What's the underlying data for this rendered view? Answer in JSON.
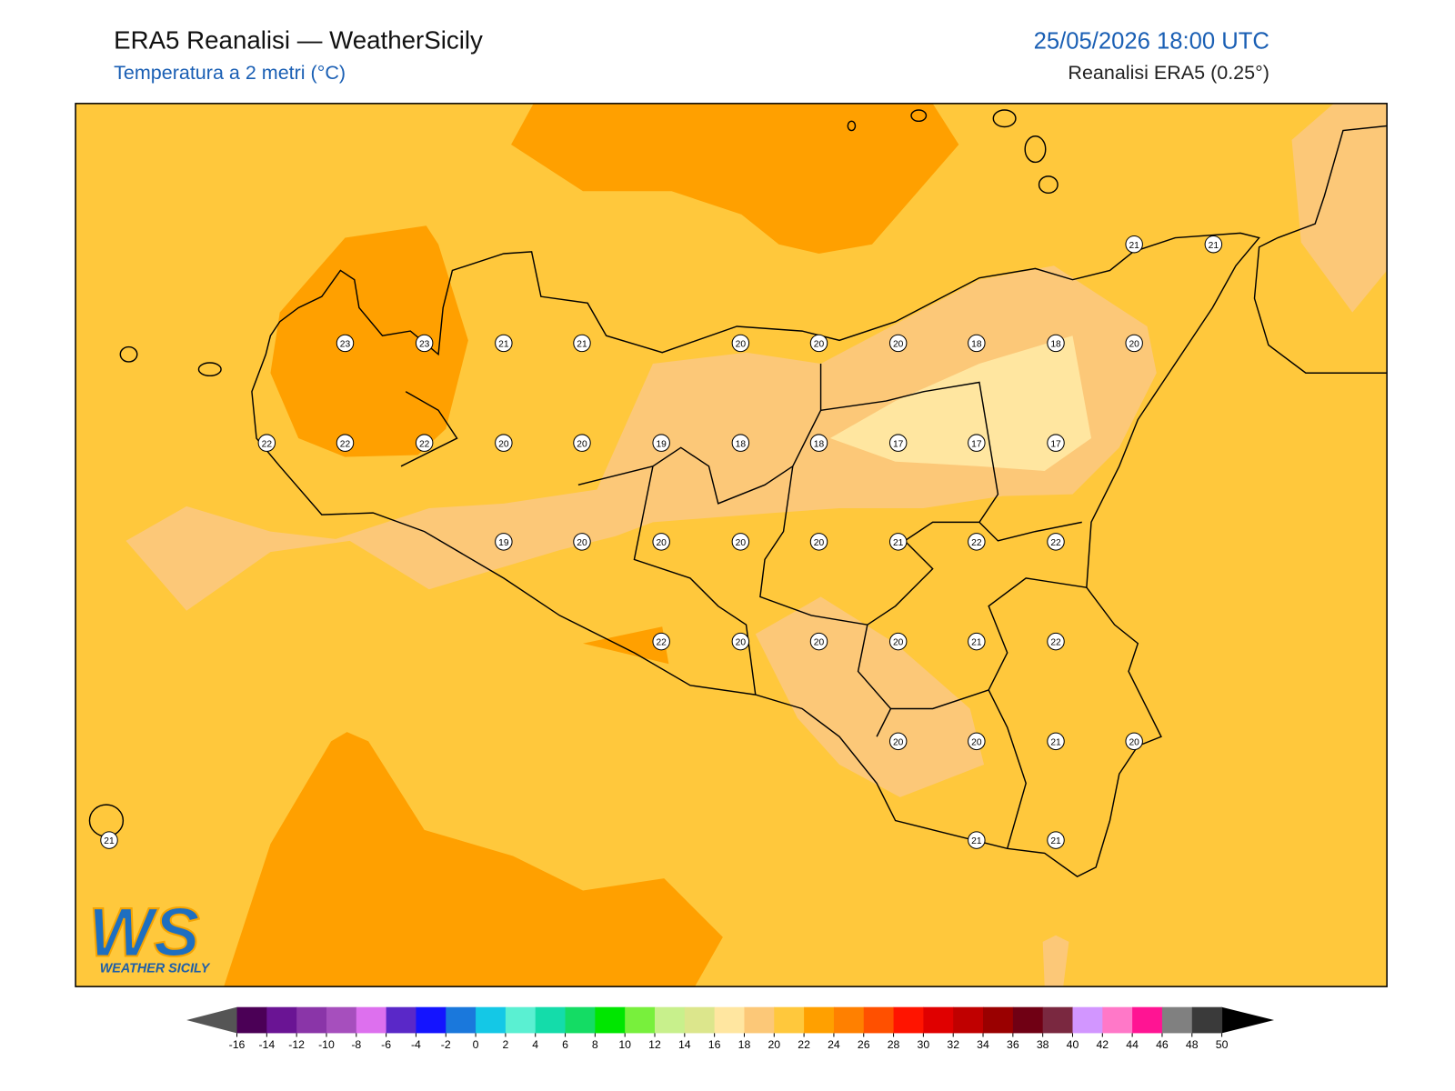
{
  "header": {
    "title": "ERA5 Reanalisi — WeatherSicily",
    "subtitle": "Temperatura a 2 metri (°C)",
    "datetime": "25/05/2026 18:00 UTC",
    "source": "Reanalisi ERA5 (0.25°)"
  },
  "stations": {
    "values": [
      21,
      21,
      23,
      23,
      21,
      21,
      20,
      20,
      20,
      18,
      18,
      20,
      22,
      22,
      22,
      20,
      20,
      19,
      18,
      18,
      17,
      17,
      17,
      19,
      20,
      20,
      20,
      20,
      21,
      22,
      22,
      22,
      20,
      20,
      20,
      21,
      22,
      20,
      20,
      21,
      20,
      21,
      21,
      21
    ]
  },
  "colorbar": {
    "ticks": [
      -16,
      -14,
      -12,
      -10,
      -8,
      -6,
      -4,
      -2,
      0,
      2,
      4,
      6,
      8,
      10,
      12,
      14,
      16,
      18,
      20,
      22,
      24,
      26,
      28,
      30,
      32,
      34,
      36,
      38,
      40,
      42,
      44,
      46,
      48,
      50
    ],
    "colors": [
      "#4b0056",
      "#6a1494",
      "#8a35a8",
      "#a64fbd",
      "#dd70ee",
      "#5a28c8",
      "#1414ff",
      "#1a78dc",
      "#14c8e6",
      "#5af0d2",
      "#14dcaa",
      "#14dc64",
      "#00e600",
      "#78f03c",
      "#c8f08c",
      "#dce68c",
      "#ffe6a0",
      "#fcc878",
      "#ffc83c",
      "#ffa000",
      "#ff8000",
      "#ff5000",
      "#ff1400",
      "#e00000",
      "#c00000",
      "#9a0000",
      "#700014",
      "#7a2840",
      "#d296ff",
      "#ff78c8",
      "#ff1493",
      "#808080",
      "#3a3a3a"
    ],
    "under_color": "#555555",
    "over_color": "#000000"
  },
  "logo": {
    "mark": "WS",
    "text": "WEATHER SICILY"
  }
}
